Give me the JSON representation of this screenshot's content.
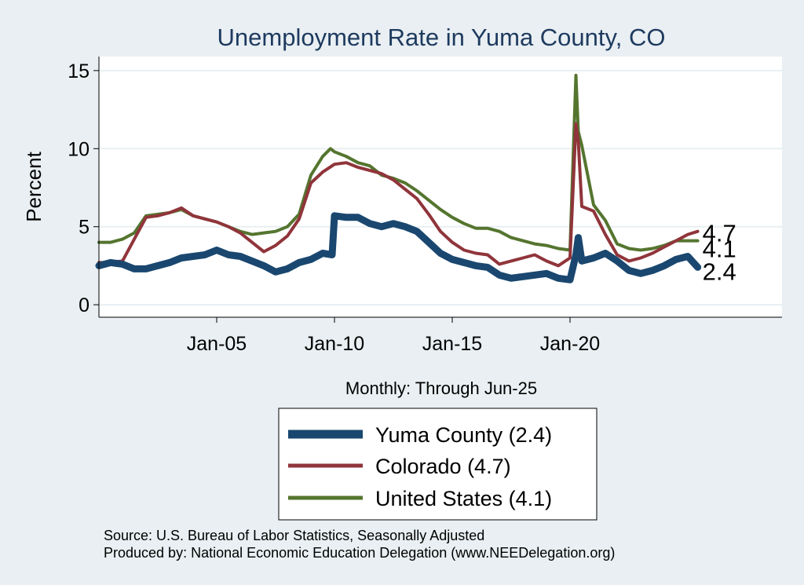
{
  "chart_data": {
    "type": "line",
    "title": "Unemployment Rate in Yuma  County, CO",
    "xlabel": "Monthly: Through Jun-25",
    "ylabel": "Percent",
    "xlim": [
      2000.0,
      2029.0
    ],
    "ylim": [
      -0.8,
      15.9
    ],
    "x_ticks": [
      {
        "label": "Jan-05",
        "value": 2005.0
      },
      {
        "label": "Jan-10",
        "value": 2010.0
      },
      {
        "label": "Jan-15",
        "value": 2015.0
      },
      {
        "label": "Jan-20",
        "value": 2020.0
      }
    ],
    "y_ticks": [
      0,
      5,
      10,
      15
    ],
    "grid": true,
    "legend_position": "bottom",
    "series": [
      {
        "name": "Yuma  County (2.4)",
        "end_label": "2.4",
        "color": "#1a476f",
        "x": [
          2000.0,
          2000.5,
          2001.0,
          2001.5,
          2002.0,
          2002.5,
          2003.0,
          2003.5,
          2004.0,
          2004.5,
          2005.0,
          2005.5,
          2006.0,
          2006.5,
          2007.0,
          2007.5,
          2008.0,
          2008.5,
          2009.0,
          2009.5,
          2009.9,
          2010.0,
          2010.5,
          2011.0,
          2011.5,
          2012.0,
          2012.5,
          2013.0,
          2013.5,
          2014.0,
          2014.5,
          2015.0,
          2015.5,
          2016.0,
          2016.5,
          2017.0,
          2017.5,
          2018.0,
          2018.5,
          2019.0,
          2019.5,
          2020.0,
          2020.25,
          2020.35,
          2020.5,
          2021.0,
          2021.5,
          2022.0,
          2022.5,
          2023.0,
          2023.5,
          2024.0,
          2024.5,
          2025.0,
          2025.42
        ],
        "y": [
          2.5,
          2.7,
          2.6,
          2.3,
          2.3,
          2.5,
          2.7,
          3.0,
          3.1,
          3.2,
          3.5,
          3.2,
          3.1,
          2.8,
          2.5,
          2.1,
          2.3,
          2.7,
          2.9,
          3.3,
          3.2,
          5.7,
          5.6,
          5.6,
          5.2,
          5.0,
          5.2,
          5.0,
          4.7,
          4.0,
          3.3,
          2.9,
          2.7,
          2.5,
          2.4,
          1.9,
          1.7,
          1.8,
          1.9,
          2.0,
          1.7,
          1.6,
          3.2,
          4.3,
          2.8,
          3.0,
          3.3,
          2.8,
          2.2,
          2.0,
          2.2,
          2.5,
          2.9,
          3.1,
          2.4
        ]
      },
      {
        "name": "Colorado (4.7)",
        "end_label": "4.7",
        "color": "#90353b",
        "x": [
          2000.0,
          2000.5,
          2001.0,
          2001.5,
          2002.0,
          2002.5,
          2003.0,
          2003.5,
          2004.0,
          2004.5,
          2005.0,
          2005.5,
          2006.0,
          2006.5,
          2007.0,
          2007.5,
          2008.0,
          2008.5,
          2009.0,
          2009.5,
          2010.0,
          2010.5,
          2011.0,
          2011.5,
          2012.0,
          2012.5,
          2013.0,
          2013.5,
          2014.0,
          2014.5,
          2015.0,
          2015.5,
          2016.0,
          2016.5,
          2017.0,
          2017.5,
          2018.0,
          2018.5,
          2019.0,
          2019.5,
          2020.0,
          2020.25,
          2020.35,
          2020.5,
          2021.0,
          2021.5,
          2022.0,
          2022.5,
          2023.0,
          2023.5,
          2024.0,
          2024.5,
          2025.0,
          2025.42
        ],
        "y": [
          2.7,
          2.7,
          2.8,
          4.2,
          5.6,
          5.7,
          5.9,
          6.2,
          5.7,
          5.5,
          5.3,
          5.0,
          4.6,
          4.0,
          3.4,
          3.8,
          4.4,
          5.5,
          7.8,
          8.5,
          9.0,
          9.1,
          8.8,
          8.6,
          8.4,
          8.0,
          7.4,
          6.8,
          5.8,
          4.7,
          4.0,
          3.5,
          3.3,
          3.2,
          2.6,
          2.8,
          3.0,
          3.2,
          2.8,
          2.5,
          3.0,
          11.6,
          10.5,
          6.3,
          6.0,
          4.5,
          3.2,
          2.8,
          3.0,
          3.3,
          3.7,
          4.1,
          4.5,
          4.7
        ]
      },
      {
        "name": "United States (4.1)",
        "end_label": "4.1",
        "color": "#55752f",
        "x": [
          2000.0,
          2000.5,
          2001.0,
          2001.5,
          2002.0,
          2002.5,
          2003.0,
          2003.5,
          2004.0,
          2004.5,
          2005.0,
          2005.5,
          2006.0,
          2006.5,
          2007.0,
          2007.5,
          2008.0,
          2008.5,
          2009.0,
          2009.5,
          2009.83,
          2010.0,
          2010.5,
          2011.0,
          2011.5,
          2012.0,
          2012.5,
          2013.0,
          2013.5,
          2014.0,
          2014.5,
          2015.0,
          2015.5,
          2016.0,
          2016.5,
          2017.0,
          2017.5,
          2018.0,
          2018.5,
          2019.0,
          2019.5,
          2020.0,
          2020.25,
          2020.35,
          2020.5,
          2021.0,
          2021.5,
          2022.0,
          2022.5,
          2023.0,
          2023.5,
          2024.0,
          2024.5,
          2025.0,
          2025.42
        ],
        "y": [
          4.0,
          4.0,
          4.2,
          4.6,
          5.7,
          5.8,
          5.9,
          6.1,
          5.7,
          5.5,
          5.3,
          5.0,
          4.7,
          4.5,
          4.6,
          4.7,
          5.0,
          5.8,
          8.3,
          9.5,
          10.0,
          9.8,
          9.5,
          9.1,
          8.9,
          8.3,
          8.1,
          7.8,
          7.3,
          6.7,
          6.1,
          5.6,
          5.2,
          4.9,
          4.9,
          4.7,
          4.3,
          4.1,
          3.9,
          3.8,
          3.6,
          3.5,
          14.7,
          11.1,
          10.2,
          6.4,
          5.4,
          3.9,
          3.6,
          3.5,
          3.6,
          3.8,
          4.1,
          4.1,
          4.1
        ]
      }
    ]
  },
  "source_note": "Source: U.S. Bureau of Labor Statistics, Seasonally Adjusted",
  "produced_note": "Produced by: National Economic Education Delegation (www.NEEDelegation.org)"
}
